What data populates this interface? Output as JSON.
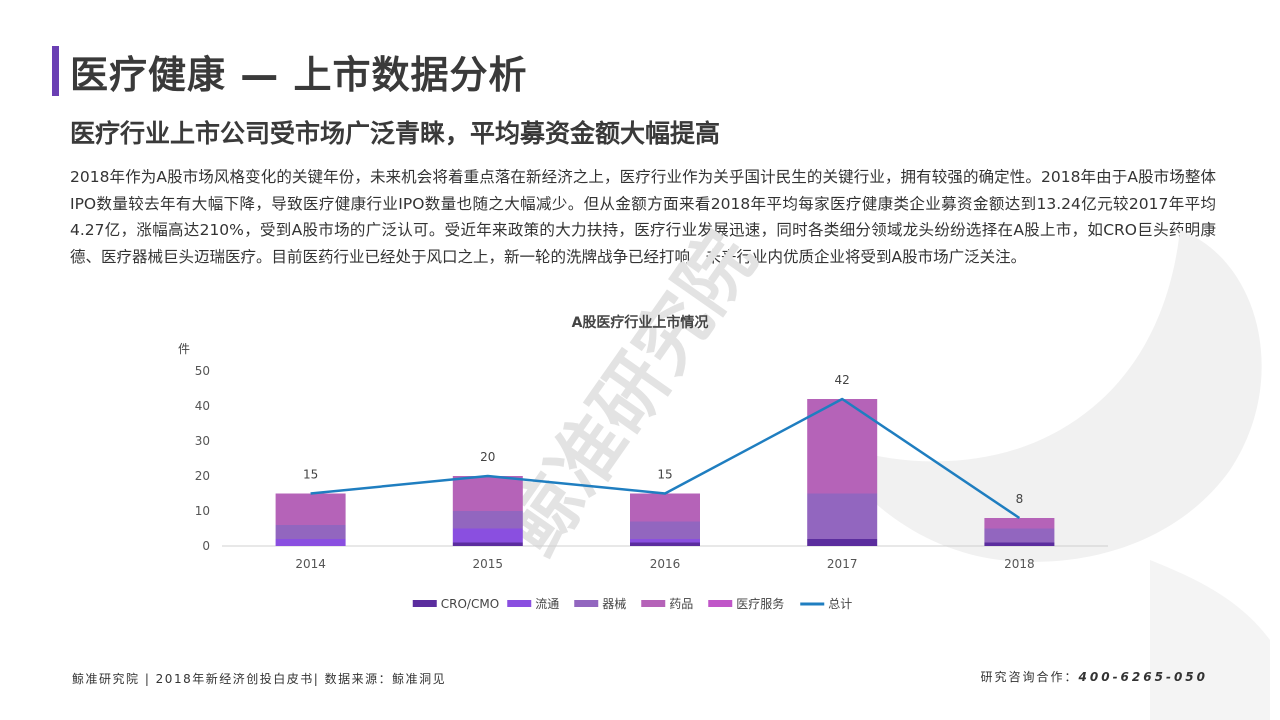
{
  "header": {
    "title": "医疗健康 — 上市数据分析",
    "subtitle": "医疗行业上市公司受市场广泛青睐，平均募资金额大幅提高"
  },
  "body": {
    "paragraph": "2018年作为A股市场风格变化的关键年份，未来机会将着重点落在新经济之上，医疗行业作为关乎国计民生的关键行业，拥有较强的确定性。2018年由于A股市场整体IPO数量较去年有大幅下降，导致医疗健康行业IPO数量也随之大幅减少。但从金额方面来看2018年平均每家医疗健康类企业募资金额达到13.24亿元较2017年平均4.27亿，涨幅高达210%，受到A股市场的广泛认可。受近年来政策的大力扶持，医疗行业发展迅速，同时各类细分领域龙头纷纷选择在A股上市，如CRO巨头药明康德、医疗器械巨头迈瑞医疗。目前医药行业已经处于风口之上，新一轮的洗牌战争已经打响，未来行业内优质企业将受到A股市场广泛关注。"
  },
  "watermark": {
    "text": "鲸准研究院",
    "color": "#e6e6e6"
  },
  "chart_data": {
    "type": "bar",
    "stacked": true,
    "title": "A股医疗行业上市情况",
    "ylabel": "件",
    "xlabel": "",
    "ylim": [
      0,
      50
    ],
    "yticks": [
      0,
      10,
      20,
      30,
      40,
      50
    ],
    "categories": [
      "2014",
      "2015",
      "2016",
      "2017",
      "2018"
    ],
    "series": [
      {
        "name": "CRO/CMO",
        "color": "#5b2d9e",
        "values": [
          0,
          1,
          1,
          2,
          1
        ]
      },
      {
        "name": "流通",
        "color": "#8a4fe0",
        "values": [
          2,
          4,
          1,
          0,
          0
        ]
      },
      {
        "name": "器械",
        "color": "#9266bf",
        "values": [
          4,
          5,
          5,
          13,
          4
        ]
      },
      {
        "name": "药品",
        "color": "#b563b8",
        "values": [
          9,
          10,
          8,
          27,
          3
        ]
      },
      {
        "name": "医疗服务",
        "color": "#c056c8",
        "values": [
          0,
          0,
          0,
          0,
          0
        ]
      }
    ],
    "line": {
      "name": "总计",
      "color": "#1f7ec0",
      "values": [
        15,
        20,
        15,
        42,
        8
      ]
    },
    "legend": "bottom",
    "grid": false
  },
  "footer": {
    "left": "鲸准研究院 | 2018年新经济创投白皮书| 数据来源：鲸准洞见",
    "right_label": "研究咨询合作：",
    "phone": "400-6265-050"
  }
}
